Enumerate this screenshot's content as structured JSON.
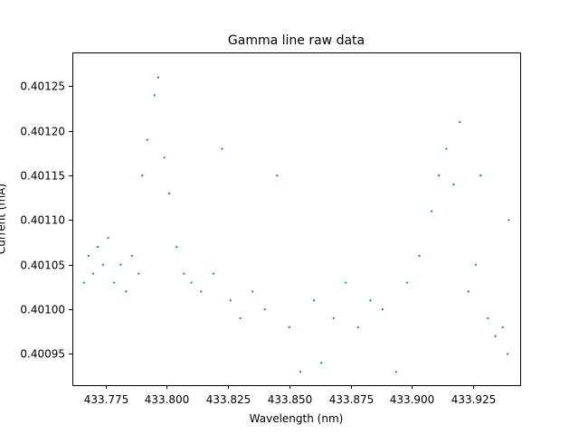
{
  "chart_data": {
    "type": "scatter",
    "title": "Gamma line raw data",
    "xlabel": "Wavelength (nm)",
    "ylabel": "Current (mA)",
    "xlim": [
      433.7615,
      433.9445
    ],
    "ylim": [
      0.400915,
      0.401288
    ],
    "xticks": [
      433.775,
      433.8,
      433.825,
      433.85,
      433.875,
      433.9,
      433.925
    ],
    "xtick_labels": [
      "433.775",
      "433.800",
      "433.825",
      "433.850",
      "433.875",
      "433.900",
      "433.925"
    ],
    "yticks": [
      0.40095,
      0.401,
      0.40105,
      0.4011,
      0.40115,
      0.4012,
      0.40125
    ],
    "ytick_labels": [
      "0.40095",
      "0.40100",
      "0.40105",
      "0.40110",
      "0.40115",
      "0.40120",
      "0.40125"
    ],
    "grid": false,
    "legend": "none",
    "marker_color": "#1f77b4",
    "y_resolution": 1e-05,
    "points": [
      {
        "x": 433.7662,
        "y": 0.40103
      },
      {
        "x": 433.7681,
        "y": 0.40106
      },
      {
        "x": 433.77,
        "y": 0.40104
      },
      {
        "x": 433.7718,
        "y": 0.40107
      },
      {
        "x": 433.774,
        "y": 0.40105
      },
      {
        "x": 433.7761,
        "y": 0.40108
      },
      {
        "x": 433.7785,
        "y": 0.40103
      },
      {
        "x": 433.7812,
        "y": 0.40105
      },
      {
        "x": 433.7834,
        "y": 0.40102
      },
      {
        "x": 433.7858,
        "y": 0.40106
      },
      {
        "x": 433.7885,
        "y": 0.40104
      },
      {
        "x": 433.79,
        "y": 0.40115
      },
      {
        "x": 433.792,
        "y": 0.40119
      },
      {
        "x": 433.795,
        "y": 0.40124
      },
      {
        "x": 433.7965,
        "y": 0.40126
      },
      {
        "x": 433.799,
        "y": 0.40117
      },
      {
        "x": 433.801,
        "y": 0.40113
      },
      {
        "x": 433.804,
        "y": 0.40107
      },
      {
        "x": 433.807,
        "y": 0.40104
      },
      {
        "x": 433.81,
        "y": 0.40103
      },
      {
        "x": 433.814,
        "y": 0.40102
      },
      {
        "x": 433.819,
        "y": 0.40104
      },
      {
        "x": 433.8225,
        "y": 0.40118
      },
      {
        "x": 433.826,
        "y": 0.40101
      },
      {
        "x": 433.83,
        "y": 0.40099
      },
      {
        "x": 433.835,
        "y": 0.40102
      },
      {
        "x": 433.84,
        "y": 0.401
      },
      {
        "x": 433.845,
        "y": 0.40115
      },
      {
        "x": 433.85,
        "y": 0.40098
      },
      {
        "x": 433.8545,
        "y": 0.40093
      },
      {
        "x": 433.86,
        "y": 0.40101
      },
      {
        "x": 433.863,
        "y": 0.40094
      },
      {
        "x": 433.868,
        "y": 0.40099
      },
      {
        "x": 433.873,
        "y": 0.40103
      },
      {
        "x": 433.878,
        "y": 0.40098
      },
      {
        "x": 433.883,
        "y": 0.40101
      },
      {
        "x": 433.888,
        "y": 0.401
      },
      {
        "x": 433.8935,
        "y": 0.40093
      },
      {
        "x": 433.898,
        "y": 0.40103
      },
      {
        "x": 433.903,
        "y": 0.40106
      },
      {
        "x": 433.908,
        "y": 0.40111
      },
      {
        "x": 433.911,
        "y": 0.40115
      },
      {
        "x": 433.914,
        "y": 0.40118
      },
      {
        "x": 433.917,
        "y": 0.40114
      },
      {
        "x": 433.9195,
        "y": 0.40121
      },
      {
        "x": 433.923,
        "y": 0.40102
      },
      {
        "x": 433.926,
        "y": 0.40105
      },
      {
        "x": 433.928,
        "y": 0.40115
      },
      {
        "x": 433.931,
        "y": 0.40099
      },
      {
        "x": 433.934,
        "y": 0.40097
      },
      {
        "x": 433.937,
        "y": 0.40098
      },
      {
        "x": 433.939,
        "y": 0.40095
      },
      {
        "x": 433.9395,
        "y": 0.4011
      }
    ]
  }
}
